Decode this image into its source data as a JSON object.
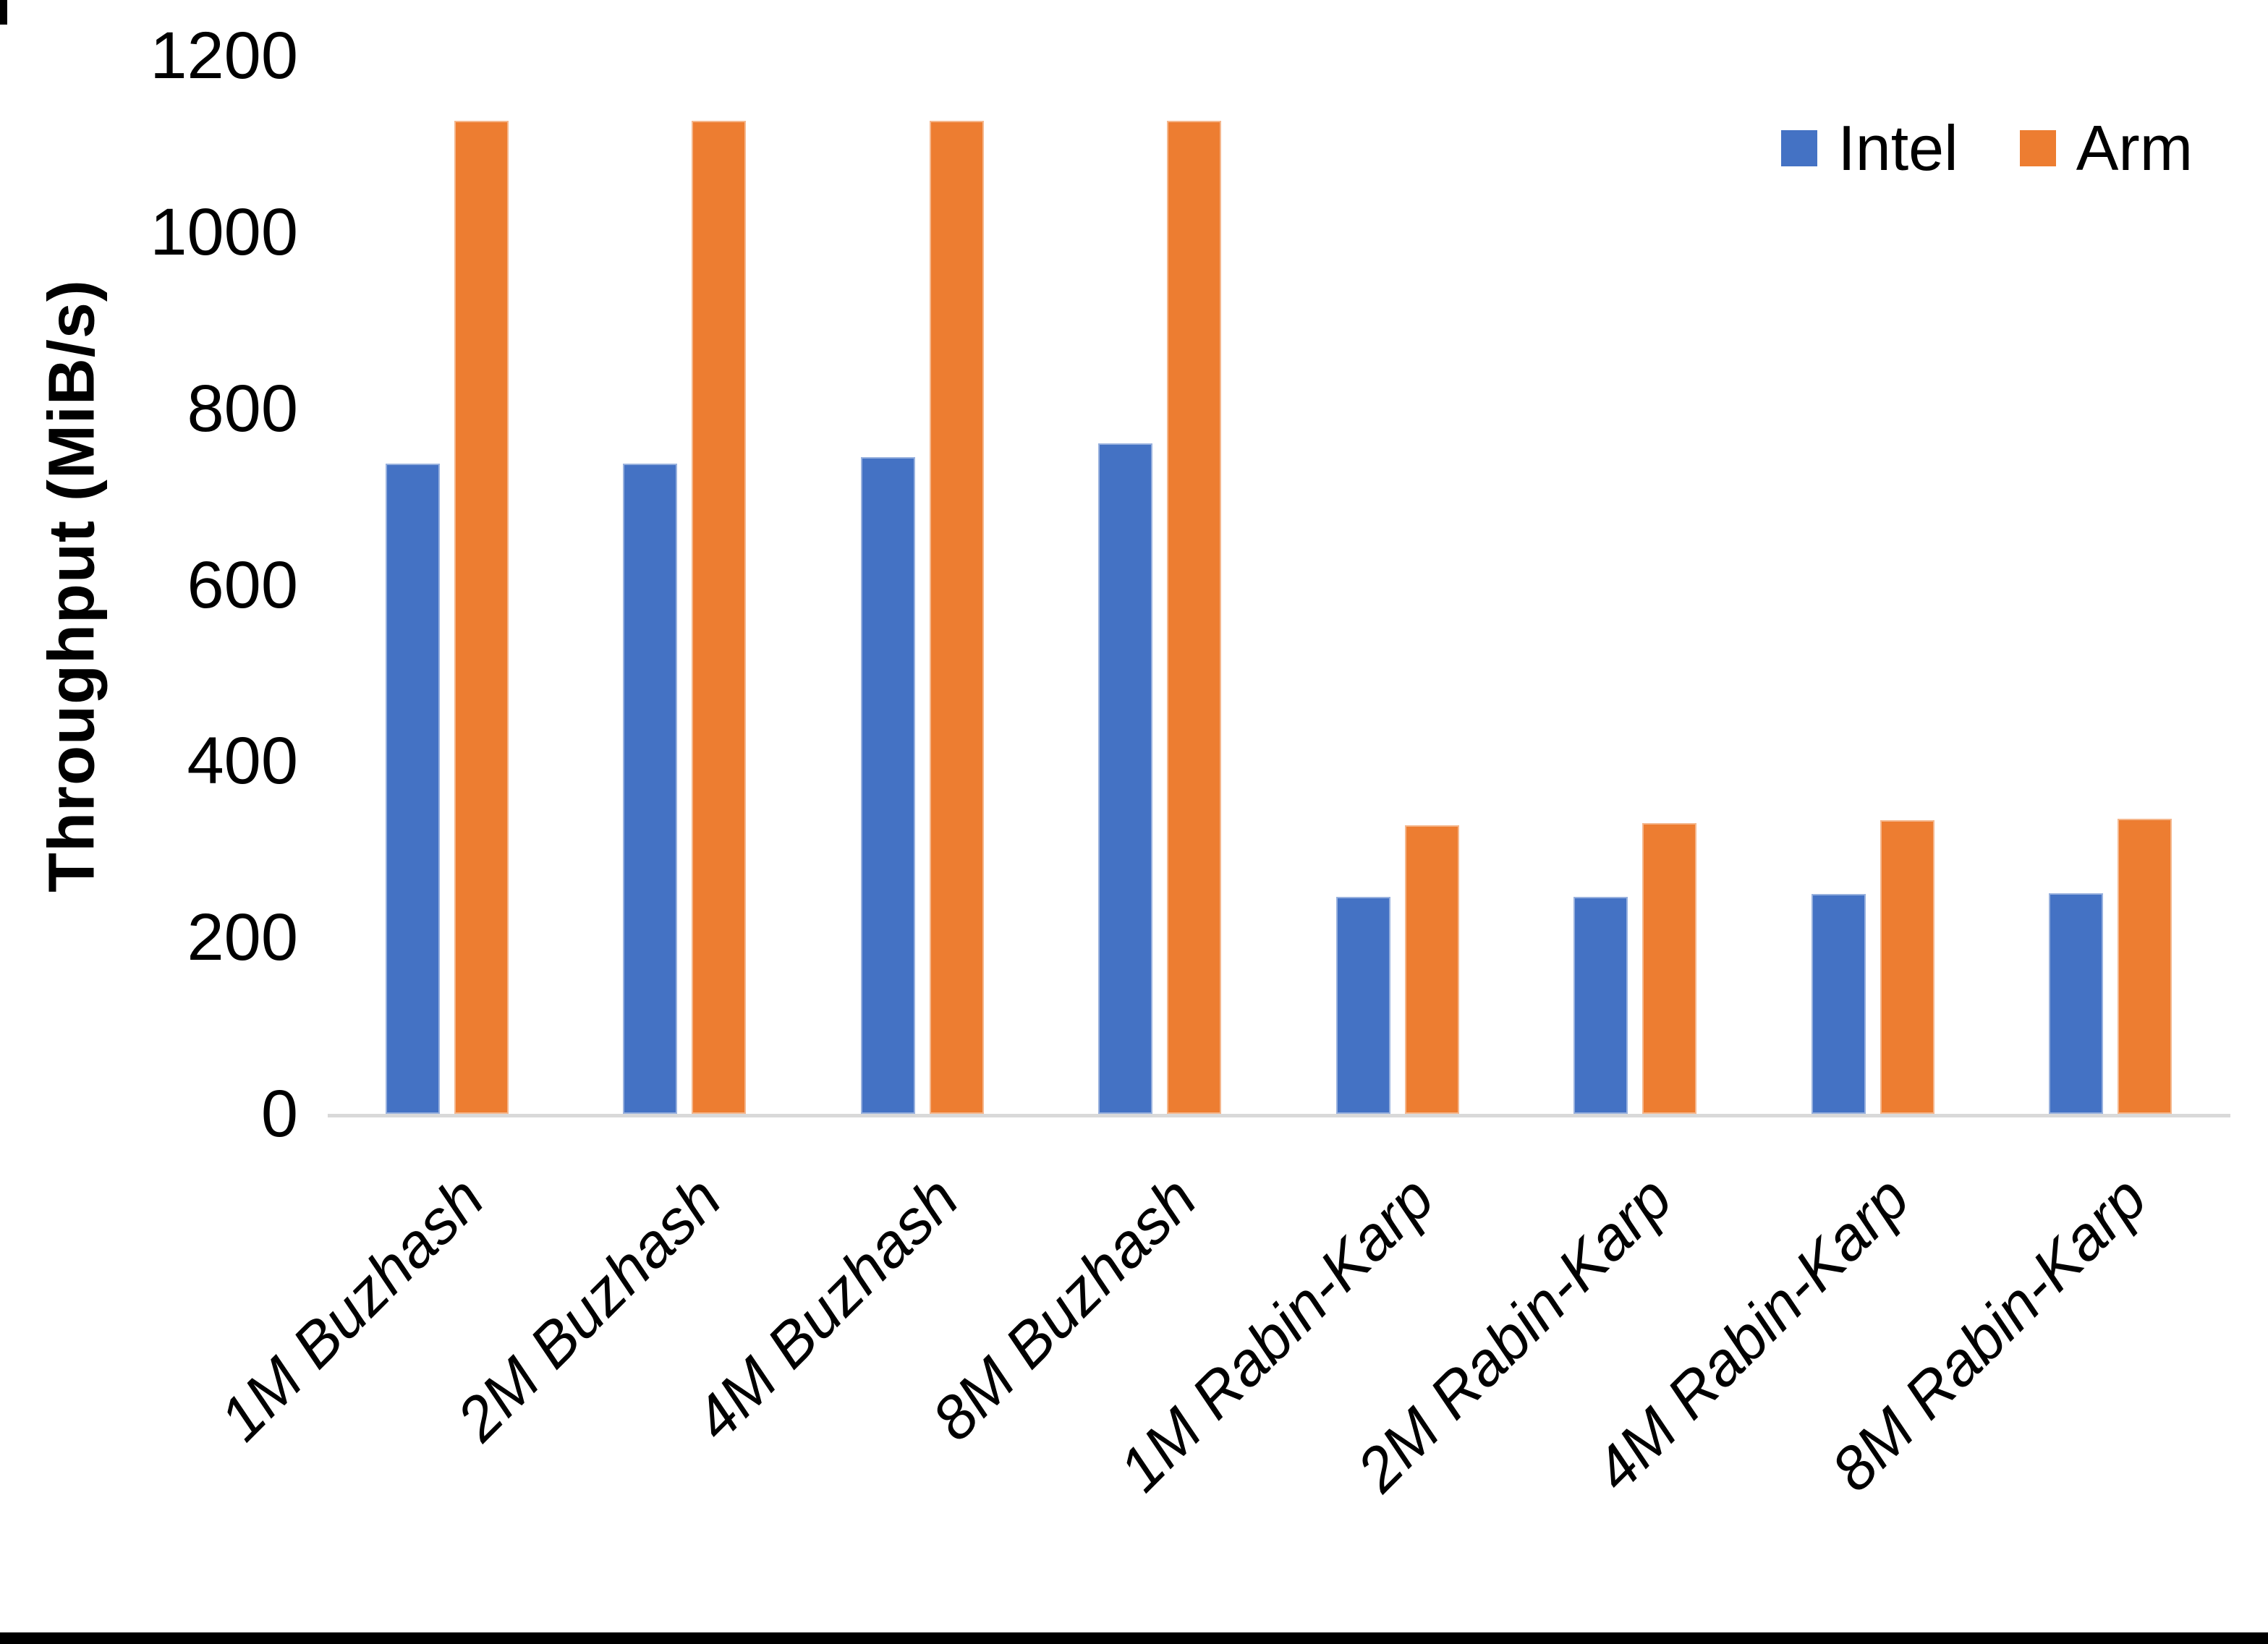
{
  "page": {
    "background": "#FFFFFF",
    "bottom_border_color": "#000000"
  },
  "chart_data": {
    "type": "bar",
    "title": "",
    "xlabel": "",
    "ylabel": "Throughput (MiB/s)",
    "categories": [
      "1M Buzhash",
      "2M Buzhash",
      "4M Buzhash",
      "8M Buzhash",
      "1M Rabin-Karp",
      "2M Rabin-Karp",
      "4M Rabin-Karp",
      "8M Rabin-Karp"
    ],
    "series": [
      {
        "name": "Intel",
        "color": "#4472C4",
        "values": [
          737,
          737,
          745,
          760,
          246,
          246,
          249,
          250
        ]
      },
      {
        "name": "Arm",
        "color": "#ED7D31",
        "values": [
          1126,
          1126,
          1126,
          1126,
          327,
          330,
          333,
          335
        ]
      }
    ],
    "ylim": [
      0,
      1200
    ],
    "yticks": [
      0,
      200,
      400,
      600,
      800,
      1000,
      1200
    ],
    "grid": false,
    "legend_position": "top-right",
    "axis_line_color": "#D9D9D9",
    "text_color": "#000000"
  }
}
